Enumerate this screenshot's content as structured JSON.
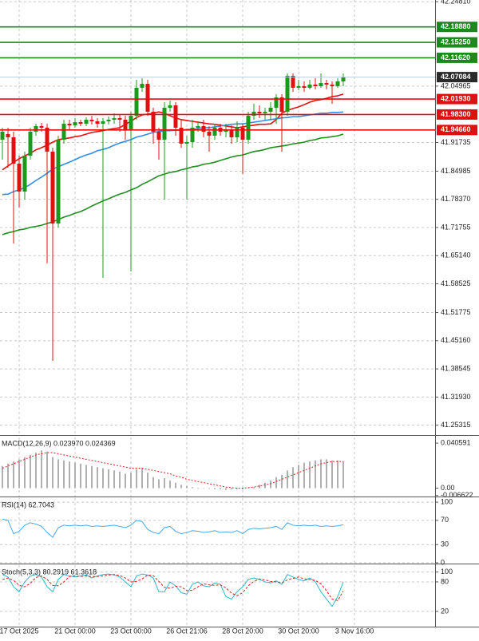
{
  "chart_data": [
    {
      "type": "candlestick",
      "categories": [
        null,
        null,
        null,
        "17 Oct 2025",
        null,
        null,
        null,
        null,
        null,
        null,
        null,
        null,
        null,
        "21 Oct 00:00",
        null,
        null,
        null,
        null,
        null,
        null,
        null,
        null,
        null,
        "23 Oct 00:00",
        null,
        null,
        null,
        null,
        null,
        null,
        null,
        null,
        null,
        "26 Oct 21:06",
        null,
        null,
        null,
        null,
        null,
        null,
        null,
        null,
        null,
        "28 Oct 20:00",
        null,
        null,
        null,
        null,
        null,
        null,
        null,
        null,
        null,
        "30 Oct 20:00",
        null,
        null,
        null,
        null,
        null,
        null,
        null,
        null,
        null,
        "3 Nov 16:00"
      ],
      "open": [
        41.9239,
        41.937,
        41.9295,
        41.8676,
        41.802,
        41.8864,
        41.9426,
        41.9558,
        41.952,
        41.8958,
        41.727,
        41.9239,
        41.9614,
        41.9576,
        41.9651,
        41.9614,
        41.9708,
        41.967,
        41.9614,
        41.967,
        41.9708,
        41.9745,
        41.9708,
        41.9483,
        41.9801,
        42.0458,
        42.0551,
        41.9895,
        41.9426,
        41.9239,
        41.9989,
        42.0045,
        41.952,
        41.9145,
        41.9183,
        41.952,
        41.9558,
        41.9426,
        41.9333,
        41.952,
        41.9426,
        41.9483,
        41.9295,
        41.952,
        41.9239,
        41.9801,
        41.9895,
        41.9858,
        41.9895,
        41.9989,
        42.0233,
        41.9895,
        42.0739,
        42.0458,
        42.0495,
        42.0458,
        42.0533,
        42.0495,
        42.057,
        42.0533,
        42.0495,
        42.0608,
        null,
        null
      ],
      "high": [
        41.952,
        41.952,
        41.9426,
        41.8864,
        41.8958,
        41.952,
        41.9614,
        41.9633,
        41.9614,
        41.9051,
        41.9333,
        41.9708,
        41.9708,
        41.9745,
        41.9708,
        41.9764,
        41.9801,
        41.9745,
        41.9745,
        41.9783,
        41.9858,
        41.982,
        41.9801,
        41.9895,
        42.0645,
        42.0683,
        42.0645,
        41.9989,
        41.952,
        42.012,
        42.0158,
        42.012,
        41.9708,
        41.9333,
        41.9708,
        41.967,
        41.9708,
        41.9558,
        41.9614,
        41.9614,
        41.9614,
        41.9576,
        41.967,
        41.9614,
        41.9895,
        42.0083,
        42.0045,
        41.9989,
        42.012,
        42.0308,
        42.0308,
        42.0795,
        42.0795,
        42.0645,
        42.0608,
        42.0645,
        42.0683,
        42.0795,
        42.0645,
        42.0608,
        42.0683,
        42.0795,
        null,
        null
      ],
      "low": [
        41.877,
        41.8583,
        41.6801,
        41.7645,
        41.7833,
        41.877,
        41.9333,
        41.9426,
        41.6333,
        41.4045,
        41.7176,
        41.9145,
        41.9483,
        41.952,
        41.9558,
        41.9558,
        41.9595,
        41.952,
        41.5995,
        41.9595,
        41.9614,
        41.9426,
        41.9239,
        41.6145,
        41.9708,
        42.0364,
        41.9801,
        41.9145,
        41.877,
        41.7833,
        41.9895,
        41.9333,
        41.9051,
        41.7833,
        41.9051,
        41.9426,
        41.9295,
        41.8958,
        41.9239,
        41.9333,
        41.9295,
        41.9145,
        41.9183,
        41.8433,
        41.9145,
        41.9708,
        41.9745,
        41.9708,
        41.9708,
        41.9614,
        41.8958,
        41.9801,
        42.0364,
        42.0401,
        42.0364,
        42.042,
        42.042,
        42.0458,
        42.042,
        42.0083,
        42.0458,
        42.0495,
        null,
        null
      ],
      "close": [
        41.9426,
        41.9295,
        41.8676,
        41.802,
        41.8864,
        41.9426,
        41.9558,
        41.952,
        41.8958,
        41.727,
        41.9239,
        41.9614,
        41.9576,
        41.9651,
        41.9614,
        41.9708,
        41.967,
        41.9614,
        41.967,
        41.9708,
        41.9745,
        41.9708,
        41.9483,
        41.9801,
        42.0458,
        42.0551,
        41.9895,
        41.9426,
        41.9239,
        41.9989,
        42.0045,
        41.952,
        41.9145,
        41.9183,
        41.952,
        41.9558,
        41.9426,
        41.9333,
        41.952,
        41.9426,
        41.9483,
        41.9295,
        41.952,
        41.9239,
        41.9801,
        41.9895,
        41.9858,
        41.9895,
        41.9989,
        42.0233,
        41.9895,
        42.0739,
        42.0458,
        42.0495,
        42.0458,
        42.0533,
        42.0495,
        42.057,
        42.0533,
        42.0495,
        42.0608,
        42.0708,
        null,
        null
      ],
      "up_color": "#1a9a1a",
      "down_color": "#e01010",
      "overlays": [
        {
          "color": "#e81010",
          "values": [
            41.853,
            41.862,
            41.871,
            41.879,
            41.886,
            41.892,
            41.9,
            41.905,
            41.911,
            41.918,
            41.924,
            41.926,
            41.928,
            41.931,
            41.933,
            41.937,
            41.941,
            41.943,
            41.945,
            41.948,
            41.95,
            41.952,
            41.96,
            41.967,
            41.976,
            41.982,
            41.984,
            41.986,
            41.989,
            41.986,
            41.98,
            41.975,
            41.971,
            41.969,
            41.967,
            41.965,
            41.963,
            41.961,
            41.96,
            41.958,
            41.956,
            41.954,
            41.952,
            41.954,
            41.956,
            41.958,
            41.96,
            41.96,
            41.961,
            41.971,
            41.986,
            41.993,
            41.997,
            42.001,
            42.006,
            42.012,
            42.016,
            42.018,
            42.021,
            42.025,
            42.027,
            42.031,
            null,
            null
          ]
        },
        {
          "color": "#2f8fe8",
          "values": [
            41.795,
            41.796,
            41.802,
            41.806,
            41.811,
            41.819,
            41.828,
            41.836,
            41.845,
            41.855,
            41.86,
            41.866,
            41.871,
            41.877,
            41.883,
            41.888,
            41.892,
            41.898,
            41.901,
            41.905,
            41.911,
            41.916,
            41.92,
            41.924,
            41.93,
            41.933,
            41.937,
            41.941,
            41.943,
            41.945,
            41.945,
            41.946,
            41.946,
            41.948,
            41.948,
            41.95,
            41.952,
            41.952,
            41.954,
            41.956,
            41.958,
            41.96,
            41.961,
            41.961,
            41.963,
            41.965,
            41.967,
            41.969,
            41.971,
            41.973,
            41.975,
            41.976,
            41.978,
            41.978,
            41.98,
            41.982,
            41.984,
            41.986,
            41.986,
            41.988,
            41.988,
            41.989,
            null,
            null
          ]
        },
        {
          "color": "#1f8f1f",
          "values": [
            41.701,
            41.705,
            41.708,
            41.712,
            41.714,
            41.718,
            41.72,
            41.723,
            41.727,
            41.731,
            41.736,
            41.742,
            41.746,
            41.751,
            41.755,
            41.761,
            41.768,
            41.774,
            41.78,
            41.785,
            41.791,
            41.796,
            41.8,
            41.806,
            41.811,
            41.819,
            41.825,
            41.832,
            41.839,
            41.843,
            41.847,
            41.849,
            41.853,
            41.856,
            41.86,
            41.862,
            41.866,
            41.868,
            41.871,
            41.875,
            41.879,
            41.883,
            41.886,
            41.888,
            41.892,
            41.896,
            41.898,
            41.901,
            41.905,
            41.907,
            41.909,
            41.911,
            41.914,
            41.916,
            41.918,
            41.922,
            41.924,
            41.928,
            41.929,
            41.931,
            41.933,
            41.937,
            null,
            null
          ]
        }
      ],
      "levels": [
        {
          "value": 42.1888,
          "label": "42.18880",
          "color": "#1a8a1a"
        },
        {
          "value": 42.1525,
          "label": "42.15250",
          "color": "#1a8a1a"
        },
        {
          "value": 42.1162,
          "label": "42.11620",
          "color": "#1a8a1a"
        },
        {
          "value": 42.0193,
          "label": "42.01930",
          "color": "#e01010"
        },
        {
          "value": 41.983,
          "label": "41.98300",
          "color": "#e01010"
        },
        {
          "value": 41.9466,
          "label": "41.94660",
          "color": "#e01010"
        }
      ],
      "last_price": {
        "value": 42.07084,
        "label": "42.07084",
        "line_color": "#b8cde0",
        "box_color": "#2a2a2a"
      },
      "ylim": [
        41.23,
        42.252
      ],
      "yticks": [
        {
          "value": 42.2481,
          "label": "42.24810"
        },
        42.04965,
        41.91735,
        41.84985,
        {
          "value": 41.7837,
          "label": "41.78370"
        },
        41.71755,
        {
          "value": 41.6514,
          "label": "41.65140"
        },
        41.58525,
        41.51775,
        {
          "value": 41.4516,
          "label": "41.45160"
        },
        41.38545,
        {
          "value": 41.3193,
          "label": "41.31930"
        },
        41.25315
      ],
      "grid": true
    },
    {
      "type": "macd",
      "title": "MACD(12,26,9) 0.023970 0.024369",
      "ylim": [
        -0.0075,
        0.0457
      ],
      "yticks": [
        0.040591,
        {
          "value": 0,
          "label": "0.00"
        },
        -0.006622
      ],
      "grid": false,
      "series": [
        {
          "type": "bar",
          "color": "#b0b0b0",
          "values": [
            0.02,
            0.022,
            0.024,
            0.026,
            0.028,
            0.03,
            0.032,
            0.034,
            0.033,
            0.028,
            0.026,
            0.025,
            0.024,
            0.023,
            0.022,
            0.021,
            0.02,
            0.019,
            0.018,
            0.017,
            0.016,
            0.015,
            0.013,
            0.014,
            0.017,
            0.018,
            0.014,
            0.01,
            0.008,
            0.009,
            0.007,
            0.005,
            0.003,
            0.002,
            0.001,
            0.0005,
            0,
            -0.0005,
            -0.001,
            -0.001,
            -0.0015,
            -0.001,
            -0.001,
            -0.001,
            0,
            0.001,
            0.003,
            0.005,
            0.007,
            0.01,
            0.012,
            0.016,
            0.019,
            0.021,
            0.023,
            0.024,
            0.025,
            0.026,
            0.026,
            0.025,
            0.025,
            0.024,
            null,
            null
          ]
        },
        {
          "type": "line",
          "color": "#e02020",
          "dash": true,
          "values": [
            0.018,
            0.02,
            0.022,
            0.024,
            0.026,
            0.028,
            0.03,
            0.031,
            0.032,
            0.032,
            0.031,
            0.03,
            0.029,
            0.028,
            0.027,
            0.026,
            0.025,
            0.024,
            0.023,
            0.022,
            0.021,
            0.02,
            0.019,
            0.018,
            0.018,
            0.018,
            0.017,
            0.016,
            0.015,
            0.014,
            0.013,
            0.011,
            0.01,
            0.008,
            0.007,
            0.006,
            0.005,
            0.004,
            0.003,
            0.002,
            0.001,
            0.0005,
            0,
            0,
            0.0005,
            0.001,
            0.002,
            0.003,
            0.004,
            0.006,
            0.008,
            0.01,
            0.012,
            0.014,
            0.016,
            0.018,
            0.02,
            0.022,
            0.023,
            0.024,
            0.024,
            0.024,
            null,
            null
          ]
        }
      ]
    },
    {
      "type": "line",
      "title": "RSI(14) 62.7043",
      "ylim": [
        -1.3,
        106.7
      ],
      "yticks": [
        100,
        70,
        30,
        0
      ],
      "grid": true,
      "series": [
        {
          "color": "#4aa8e8",
          "values": [
            72,
            70,
            48,
            52,
            62,
            66,
            64,
            60,
            50,
            42,
            58,
            62,
            61,
            62,
            61,
            62,
            60,
            61,
            60,
            61,
            62,
            60,
            58,
            62,
            70,
            68,
            55,
            50,
            48,
            58,
            60,
            52,
            48,
            50,
            53,
            52,
            50,
            51,
            53,
            50,
            51,
            50,
            53,
            48,
            55,
            57,
            56,
            57,
            58,
            60,
            55,
            66,
            62,
            61,
            62,
            61,
            62,
            60,
            61,
            60,
            61,
            62.7043,
            null,
            null
          ]
        }
      ]
    },
    {
      "type": "line",
      "title": "Stoch(5,3,3) 80.2919 61.3618",
      "ylim": [
        -11,
        114
      ],
      "yticks": [
        100,
        80,
        20
      ],
      "grid": true,
      "series": [
        {
          "color": "#2ab8c8",
          "values": [
            95,
            90,
            70,
            60,
            80,
            92,
            95,
            90,
            70,
            60,
            85,
            95,
            92,
            90,
            92,
            94,
            88,
            92,
            95,
            96,
            94,
            90,
            80,
            70,
            92,
            96,
            94,
            88,
            60,
            60,
            80,
            72,
            58,
            55,
            75,
            80,
            72,
            70,
            78,
            75,
            50,
            45,
            60,
            70,
            85,
            88,
            85,
            80,
            78,
            82,
            75,
            95,
            90,
            85,
            82,
            88,
            80,
            60,
            45,
            30,
            50,
            80.2919,
            null,
            null
          ]
        },
        {
          "color": "#e02020",
          "dash": true,
          "values": [
            85,
            88,
            83,
            73,
            70,
            77,
            89,
            92,
            85,
            73,
            72,
            80,
            91,
            92,
            91,
            92,
            91,
            91,
            92,
            94,
            95,
            93,
            88,
            80,
            81,
            86,
            94,
            93,
            81,
            69,
            67,
            71,
            70,
            62,
            63,
            70,
            76,
            74,
            73,
            74,
            68,
            57,
            52,
            58,
            72,
            81,
            86,
            84,
            81,
            80,
            78,
            84,
            87,
            90,
            86,
            85,
            83,
            76,
            62,
            45,
            42,
            61.3618,
            null,
            null
          ]
        }
      ]
    }
  ]
}
